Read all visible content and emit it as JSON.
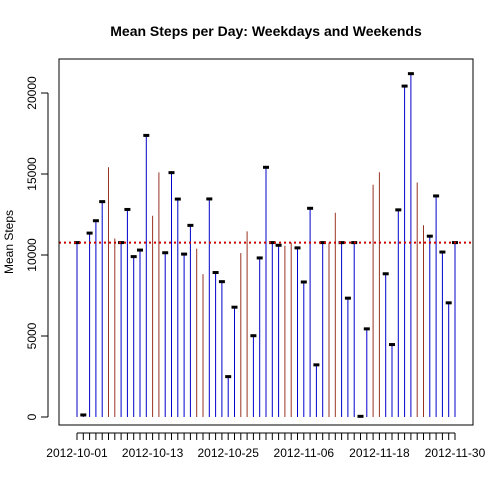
{
  "chart_data": {
    "type": "bar",
    "title": "Mean Steps per Day: Weekdays and Weekends",
    "xlabel": "",
    "ylabel": "Mean Steps",
    "ylim": [
      0,
      22000
    ],
    "y_ticks": [
      0,
      5000,
      10000,
      15000,
      20000
    ],
    "x_tick_labels": [
      "2012-10-01",
      "2012-10-13",
      "2012-10-25",
      "2012-11-06",
      "2012-11-18",
      "2012-11-30"
    ],
    "x_tick_label_indices": [
      0,
      12,
      24,
      36,
      48,
      60
    ],
    "reference_line": {
      "value": 10766,
      "color": "#cc0000",
      "style": "dotted"
    },
    "colors": {
      "weekday": "#0000cc",
      "weekend": "#993322",
      "marker": "#000000"
    },
    "categories": [
      "2012-10-01",
      "2012-10-02",
      "2012-10-03",
      "2012-10-04",
      "2012-10-05",
      "2012-10-06",
      "2012-10-07",
      "2012-10-08",
      "2012-10-09",
      "2012-10-10",
      "2012-10-11",
      "2012-10-12",
      "2012-10-13",
      "2012-10-14",
      "2012-10-15",
      "2012-10-16",
      "2012-10-17",
      "2012-10-18",
      "2012-10-19",
      "2012-10-20",
      "2012-10-21",
      "2012-10-22",
      "2012-10-23",
      "2012-10-24",
      "2012-10-25",
      "2012-10-26",
      "2012-10-27",
      "2012-10-28",
      "2012-10-29",
      "2012-10-30",
      "2012-10-31",
      "2012-11-01",
      "2012-11-02",
      "2012-11-03",
      "2012-11-04",
      "2012-11-05",
      "2012-11-06",
      "2012-11-07",
      "2012-11-08",
      "2012-11-09",
      "2012-11-10",
      "2012-11-11",
      "2012-11-12",
      "2012-11-13",
      "2012-11-14",
      "2012-11-15",
      "2012-11-16",
      "2012-11-17",
      "2012-11-18",
      "2012-11-19",
      "2012-11-20",
      "2012-11-21",
      "2012-11-22",
      "2012-11-23",
      "2012-11-24",
      "2012-11-25",
      "2012-11-26",
      "2012-11-27",
      "2012-11-28",
      "2012-11-29",
      "2012-11-30"
    ],
    "values": [
      10766,
      126,
      11352,
      12116,
      13294,
      15420,
      11015,
      10766,
      12811,
      9900,
      10304,
      17382,
      12426,
      15098,
      10139,
      15084,
      13452,
      10056,
      11829,
      10395,
      8821,
      13460,
      8918,
      8355,
      2492,
      6778,
      10119,
      11458,
      5018,
      9819,
      15414,
      10766,
      10600,
      10571,
      10766,
      10439,
      8334,
      12883,
      3219,
      10766,
      10766,
      12608,
      10765,
      7336,
      10766,
      41,
      5441,
      14339,
      15110,
      8841,
      4472,
      12787,
      20427,
      21194,
      14478,
      11834,
      11162,
      13646,
      10183,
      7047,
      10766
    ],
    "day_type": [
      "weekday",
      "weekday",
      "weekday",
      "weekday",
      "weekday",
      "weekend",
      "weekend",
      "weekday",
      "weekday",
      "weekday",
      "weekday",
      "weekday",
      "weekend",
      "weekend",
      "weekday",
      "weekday",
      "weekday",
      "weekday",
      "weekday",
      "weekend",
      "weekend",
      "weekday",
      "weekday",
      "weekday",
      "weekday",
      "weekday",
      "weekend",
      "weekend",
      "weekday",
      "weekday",
      "weekday",
      "weekday",
      "weekday",
      "weekend",
      "weekend",
      "weekday",
      "weekday",
      "weekday",
      "weekday",
      "weekday",
      "weekend",
      "weekend",
      "weekday",
      "weekday",
      "weekday",
      "weekday",
      "weekday",
      "weekend",
      "weekend",
      "weekday",
      "weekday",
      "weekday",
      "weekday",
      "weekday",
      "weekend",
      "weekend",
      "weekday",
      "weekday",
      "weekday",
      "weekday",
      "weekday"
    ],
    "has_marker": [
      true,
      true,
      true,
      true,
      true,
      false,
      false,
      true,
      true,
      true,
      true,
      true,
      false,
      false,
      true,
      true,
      true,
      true,
      true,
      false,
      false,
      true,
      true,
      true,
      true,
      true,
      false,
      false,
      true,
      true,
      true,
      true,
      true,
      false,
      false,
      true,
      true,
      true,
      true,
      true,
      false,
      false,
      true,
      true,
      true,
      true,
      true,
      false,
      false,
      true,
      true,
      true,
      true,
      true,
      false,
      false,
      true,
      true,
      true,
      true,
      true
    ]
  }
}
